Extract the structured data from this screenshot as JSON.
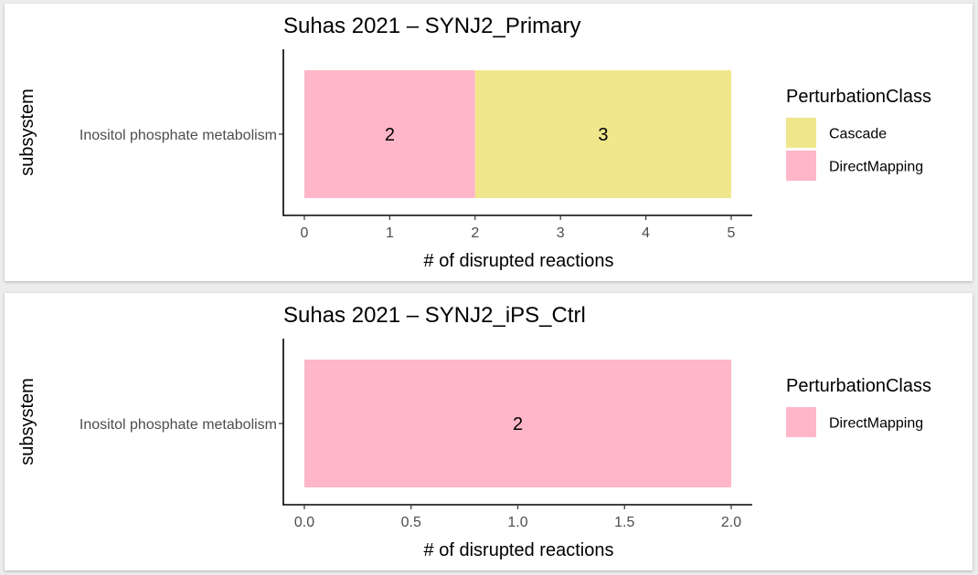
{
  "chart_data": [
    {
      "type": "bar",
      "orientation": "horizontal",
      "stacked": true,
      "title": "Suhas 2021 – SYNJ2_Primary",
      "xlabel": "# of disrupted reactions",
      "ylabel": "subsystem",
      "categories": [
        "Inositol phosphate metabolism"
      ],
      "xlim": [
        0,
        5
      ],
      "xticks": [
        "0",
        "1",
        "2",
        "3",
        "4",
        "5"
      ],
      "series": [
        {
          "name": "DirectMapping",
          "values": [
            2
          ],
          "color": "#FFB6C8"
        },
        {
          "name": "Cascade",
          "values": [
            3
          ],
          "color": "#F0E68C"
        }
      ],
      "legend": {
        "title": "PerturbationClass",
        "position": "right",
        "items": [
          {
            "label": "Cascade",
            "color": "#F0E68C"
          },
          {
            "label": "DirectMapping",
            "color": "#FFB6C8"
          }
        ]
      },
      "grid": false
    },
    {
      "type": "bar",
      "orientation": "horizontal",
      "stacked": true,
      "title": "Suhas 2021 – SYNJ2_iPS_Ctrl",
      "xlabel": "# of disrupted reactions",
      "ylabel": "subsystem",
      "categories": [
        "Inositol phosphate metabolism"
      ],
      "xlim": [
        0,
        2
      ],
      "xticks": [
        "0.0",
        "0.5",
        "1.0",
        "1.5",
        "2.0"
      ],
      "series": [
        {
          "name": "DirectMapping",
          "values": [
            2
          ],
          "color": "#FFB6C8"
        }
      ],
      "legend": {
        "title": "PerturbationClass",
        "position": "right",
        "items": [
          {
            "label": "DirectMapping",
            "color": "#FFB6C8"
          }
        ]
      },
      "grid": false
    }
  ]
}
